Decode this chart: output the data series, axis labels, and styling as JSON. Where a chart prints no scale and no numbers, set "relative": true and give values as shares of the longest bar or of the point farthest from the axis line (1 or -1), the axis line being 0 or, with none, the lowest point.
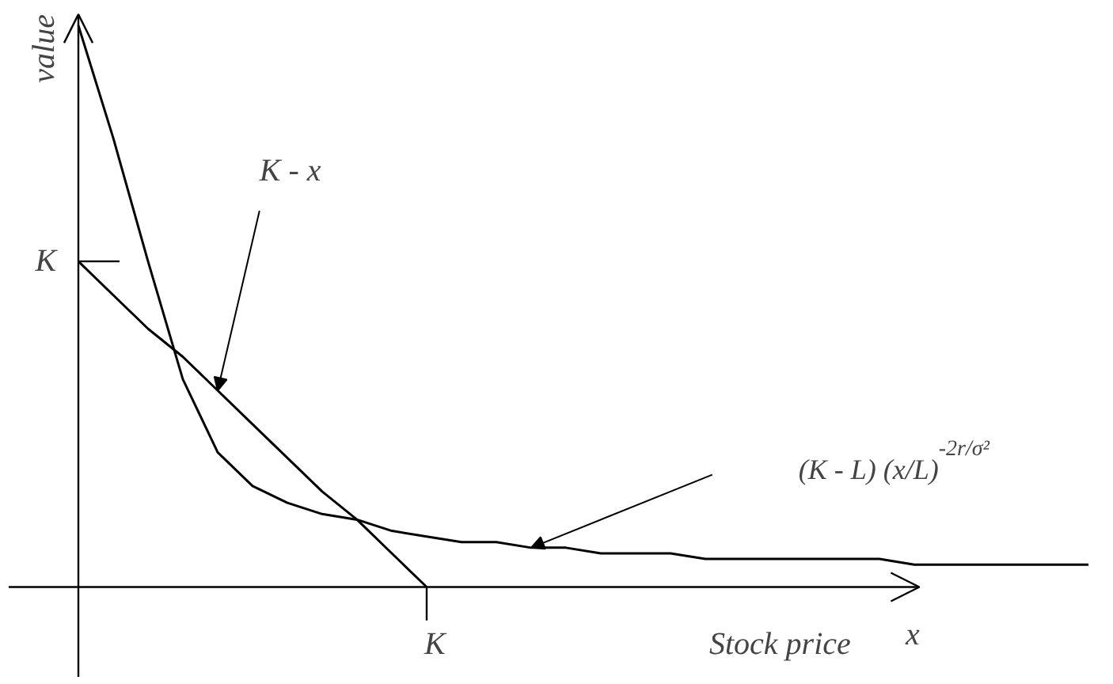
{
  "chart_data": {
    "type": "line",
    "xlabel": "x",
    "ylabel": "value",
    "relative": true,
    "categories": [
      null,
      null,
      null,
      null,
      null,
      null,
      null,
      null,
      null,
      null,
      null,
      null,
      null,
      null,
      null,
      null,
      null,
      null,
      null,
      null,
      null,
      null,
      null,
      null,
      null,
      null,
      null,
      null,
      null,
      null
    ],
    "series": [
      {
        "color": "#000000",
        "values": [
          0.58,
          0.52,
          0.46,
          0.41,
          0.35,
          0.29,
          0.23,
          0.17,
          0.12,
          0.06,
          0,
          null,
          null,
          null,
          null,
          null,
          null,
          null,
          null,
          null,
          null,
          null,
          null,
          null,
          null,
          null,
          null,
          null,
          null,
          null
        ]
      },
      {
        "color": "#000000",
        "values": [
          1,
          0.8,
          0.58,
          0.37,
          0.24,
          0.18,
          0.15,
          0.13,
          0.12,
          0.1,
          0.09,
          0.08,
          0.08,
          0.07,
          0.07,
          0.06,
          0.06,
          0.06,
          0.05,
          0.05,
          0.05,
          0.05,
          0.05,
          0.05,
          0.04,
          0.04,
          0.04,
          0.04,
          0.04,
          0.04
        ]
      }
    ],
    "annotations": [
      "K",
      "K",
      "K - x",
      "(K - L) (x/L)$^{-2r/σ²}$",
      "Stock price"
    ],
    "marker": "none",
    "line_style": "solid"
  }
}
